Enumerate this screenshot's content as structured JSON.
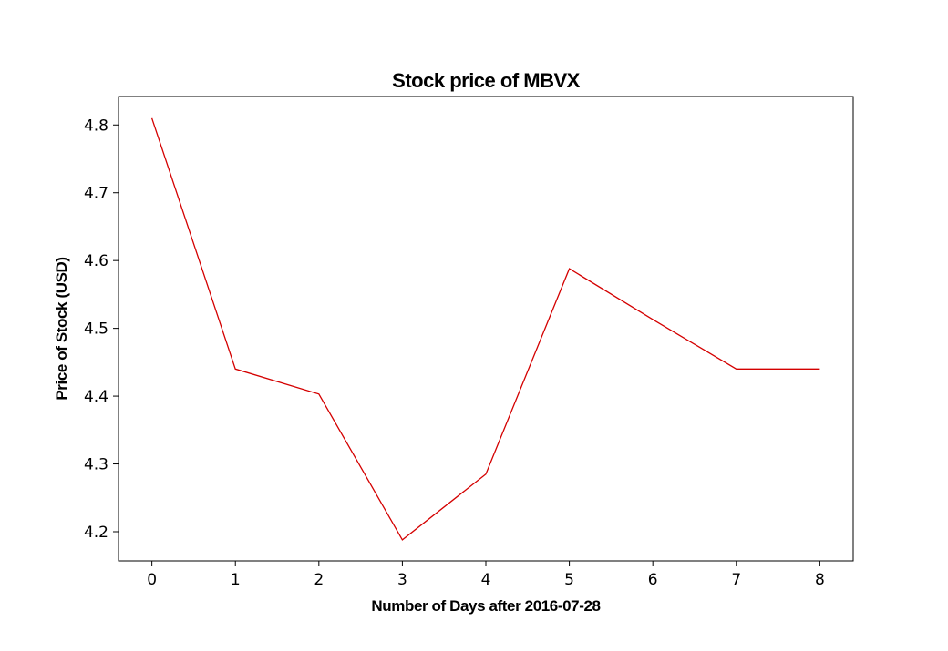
{
  "chart_data": {
    "type": "line",
    "title": "Stock price of MBVX",
    "xlabel": "Number of Days after 2016-07-28",
    "ylabel": "Price of Stock (USD)",
    "x": [
      0,
      1,
      2,
      3,
      4,
      5,
      6,
      7,
      8
    ],
    "xticks": [
      0,
      1,
      2,
      3,
      4,
      5,
      6,
      7,
      8
    ],
    "yticks": [
      4.2,
      4.3,
      4.4,
      4.5,
      4.6,
      4.7,
      4.8
    ],
    "xlim": [
      -0.4,
      8.4
    ],
    "ylim": [
      4.157,
      4.842
    ],
    "grid": false,
    "series": [
      {
        "color": "#d40000",
        "values": [
          4.81,
          4.44,
          4.403,
          4.188,
          4.285,
          4.588,
          4.513,
          4.44,
          4.44
        ]
      }
    ]
  }
}
